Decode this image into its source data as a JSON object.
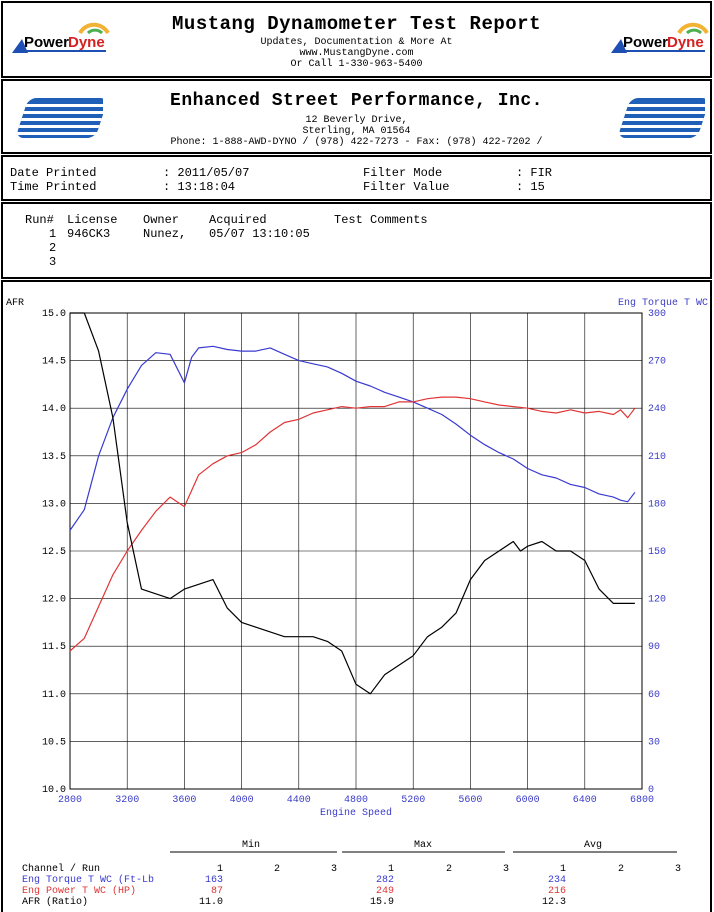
{
  "header": {
    "title": "Mustang Dynamometer Test Report",
    "line1": "Updates, Documentation & More At",
    "line2": "www.MustangDyne.com",
    "line3": "Or Call 1-330-963-5400",
    "logo_text": "PowerDyne"
  },
  "shop": {
    "name": "Enhanced Street Performance, Inc.",
    "street": "12 Beverly Drive,",
    "city": "Sterling, MA  01564",
    "contact": "Phone: 1-888-AWD-DYNO / (978) 422-7273 - Fax: (978) 422-7202 /"
  },
  "info": {
    "date_label": "Date Printed",
    "date_value": ": 2011/05/07",
    "time_label": "Time Printed",
    "time_value": ": 13:18:04",
    "filter_mode_label": "Filter Mode",
    "filter_mode_value": ": FIR",
    "filter_value_label": "Filter Value",
    "filter_value_value": ": 15"
  },
  "runs": {
    "headers": [
      "Run#",
      "License",
      "Owner",
      "Acquired",
      "Test Comments"
    ],
    "rows": [
      {
        "run": "1",
        "license": "946CK3",
        "owner": "Nunez,",
        "acquired": "05/07 13:10:05",
        "comments": ""
      },
      {
        "run": "2",
        "license": "",
        "owner": "",
        "acquired": "",
        "comments": ""
      },
      {
        "run": "3",
        "license": "",
        "owner": "",
        "acquired": "",
        "comments": ""
      }
    ]
  },
  "colors": {
    "torque": "#3a3ad0",
    "power": "#e03535",
    "afr": "#000000",
    "right_axis": "#3b3bc8"
  },
  "chart_data": {
    "type": "line",
    "xlabel": "Engine Speed",
    "left_axis_label": "AFR",
    "right_axis_label": "Eng Torque T WC",
    "x_range": [
      2800,
      6800
    ],
    "x_ticks": [
      "2800",
      "3200",
      "3600",
      "4000",
      "4400",
      "4800",
      "5200",
      "5600",
      "6000",
      "6400",
      "6800"
    ],
    "y_left_range": [
      10.0,
      15.0
    ],
    "y_left_ticks": [
      "10.0",
      "10.5",
      "11.0",
      "11.5",
      "12.0",
      "12.5",
      "13.0",
      "13.5",
      "14.0",
      "14.5",
      "15.0"
    ],
    "y_right_range": [
      0,
      300
    ],
    "y_right_ticks": [
      "0",
      "30",
      "60",
      "90",
      "120",
      "150",
      "180",
      "210",
      "240",
      "270",
      "300"
    ],
    "grid": true,
    "series": [
      {
        "name": "Eng Torque T WC (Ft-Lb)",
        "axis": "right",
        "color": "#3a3ad0",
        "x": [
          2800,
          2900,
          3000,
          3100,
          3200,
          3300,
          3400,
          3500,
          3600,
          3650,
          3700,
          3800,
          3900,
          4000,
          4100,
          4200,
          4300,
          4400,
          4500,
          4600,
          4700,
          4800,
          4900,
          5000,
          5100,
          5200,
          5300,
          5400,
          5500,
          5600,
          5700,
          5800,
          5900,
          6000,
          6100,
          6200,
          6300,
          6400,
          6500,
          6600,
          6650,
          6700,
          6750
        ],
        "y": [
          163,
          176,
          210,
          234,
          252,
          267,
          275,
          274,
          256,
          272,
          278,
          279,
          277,
          276,
          276,
          278,
          274,
          270,
          268,
          266,
          262,
          257,
          254,
          250,
          247,
          244,
          240,
          236,
          230,
          223,
          217,
          212,
          208,
          202,
          198,
          196,
          192,
          190,
          186,
          184,
          182,
          181,
          187
        ]
      },
      {
        "name": "Eng Power T WC (HP)",
        "axis": "right",
        "color": "#e03535",
        "x": [
          2800,
          2900,
          3000,
          3100,
          3200,
          3300,
          3400,
          3500,
          3600,
          3700,
          3800,
          3900,
          4000,
          4100,
          4200,
          4300,
          4400,
          4500,
          4600,
          4700,
          4800,
          4900,
          5000,
          5100,
          5200,
          5300,
          5400,
          5500,
          5600,
          5700,
          5800,
          5900,
          6000,
          6100,
          6200,
          6300,
          6400,
          6500,
          6600,
          6650,
          6700,
          6750
        ],
        "y": [
          87,
          95,
          115,
          135,
          150,
          163,
          175,
          184,
          178,
          198,
          205,
          210,
          212,
          217,
          225,
          231,
          233,
          237,
          239,
          241,
          240,
          241,
          241,
          244,
          244,
          246,
          247,
          247,
          246,
          244,
          242,
          241,
          240,
          238,
          237,
          239,
          237,
          238,
          236,
          239,
          234,
          240
        ]
      },
      {
        "name": "AFR (Ratio)",
        "axis": "left",
        "color": "#000000",
        "x": [
          2800,
          2900,
          3000,
          3100,
          3200,
          3300,
          3400,
          3500,
          3600,
          3700,
          3800,
          3900,
          4000,
          4100,
          4200,
          4300,
          4400,
          4500,
          4600,
          4700,
          4800,
          4900,
          5000,
          5100,
          5200,
          5300,
          5400,
          5500,
          5600,
          5700,
          5800,
          5900,
          5950,
          6000,
          6100,
          6200,
          6300,
          6400,
          6500,
          6600,
          6700,
          6750
        ],
        "y": [
          15.0,
          15.0,
          14.6,
          13.9,
          12.8,
          12.1,
          12.05,
          12.0,
          12.1,
          12.15,
          12.2,
          11.9,
          11.75,
          11.7,
          11.65,
          11.6,
          11.6,
          11.6,
          11.55,
          11.45,
          11.1,
          11.0,
          11.2,
          11.3,
          11.4,
          11.6,
          11.7,
          11.85,
          12.2,
          12.4,
          12.5,
          12.6,
          12.5,
          12.55,
          12.6,
          12.5,
          12.5,
          12.4,
          12.1,
          11.95,
          11.95,
          11.95
        ]
      }
    ]
  },
  "summary": {
    "groups": [
      "Min",
      "Max",
      "Avg"
    ],
    "run_header_label": "Channel / Run",
    "run_numbers": [
      "1",
      "2",
      "3"
    ],
    "rows": [
      {
        "label": "Eng Torque T WC (Ft-Lb",
        "min": "163",
        "max": "282",
        "avg": "234"
      },
      {
        "label": "Eng Power T WC (HP)",
        "min": "87",
        "max": "249",
        "avg": "216"
      },
      {
        "label": "AFR (Ratio)",
        "min": "11.0",
        "max": "15.9",
        "avg": "12.3"
      }
    ]
  }
}
